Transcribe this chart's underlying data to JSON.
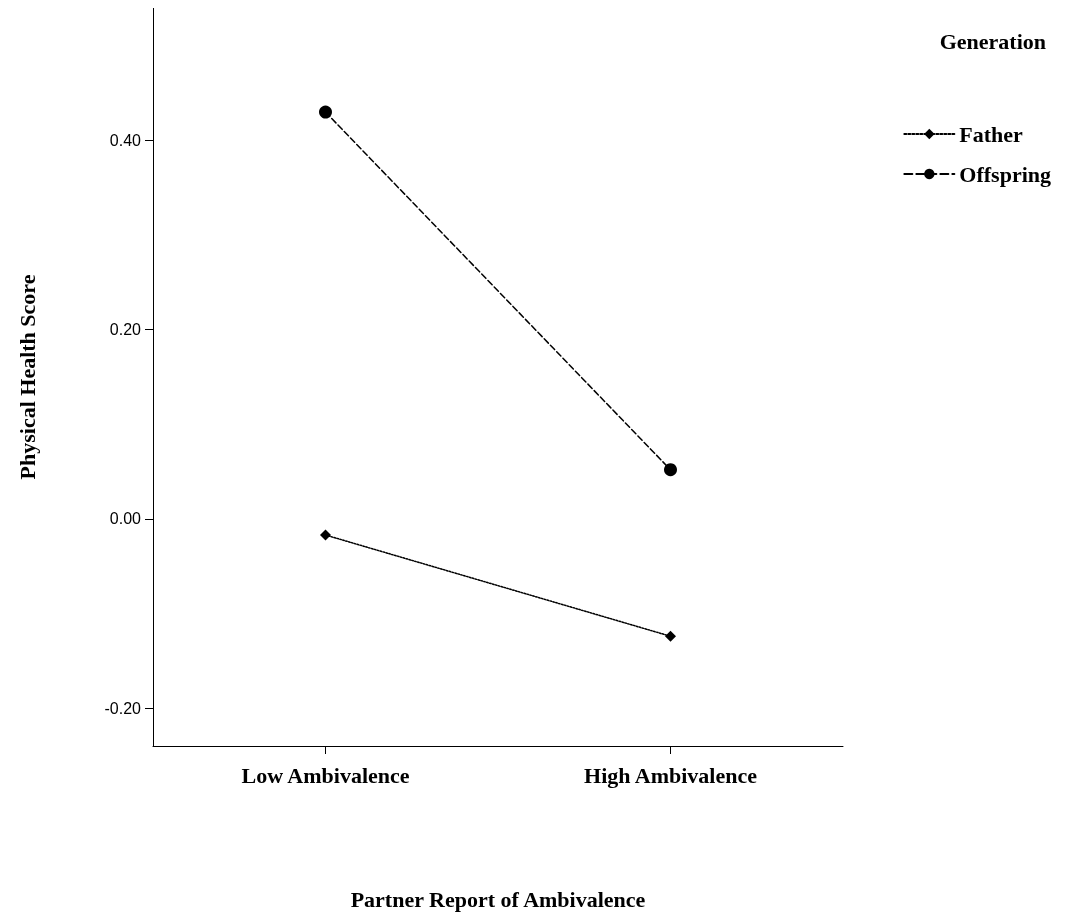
{
  "chart_data": {
    "type": "line",
    "xlabel": "Partner Report of Ambivalence",
    "ylabel": "Physical Health Score",
    "legend_title": "Generation",
    "categories": [
      "Low Ambivalence",
      "High Ambivalence"
    ],
    "series": [
      {
        "name": "Father",
        "color": "#000000",
        "values": [
          -0.017,
          -0.124
        ],
        "marker": "diamond",
        "line_style": "dotted"
      },
      {
        "name": "Offspring",
        "color": "#000000",
        "values": [
          0.43,
          0.052
        ],
        "marker": "circle",
        "line_style": "dashed"
      }
    ],
    "ylim": [
      -0.24,
      0.54
    ],
    "yticks": [
      {
        "value": -0.2,
        "label": "-0.20"
      },
      {
        "value": 0,
        "label": "0.00"
      },
      {
        "value": 0.2,
        "label": "0.20"
      },
      {
        "value": 0.4,
        "label": "0.40"
      }
    ],
    "grid": false,
    "legend": "top right"
  }
}
